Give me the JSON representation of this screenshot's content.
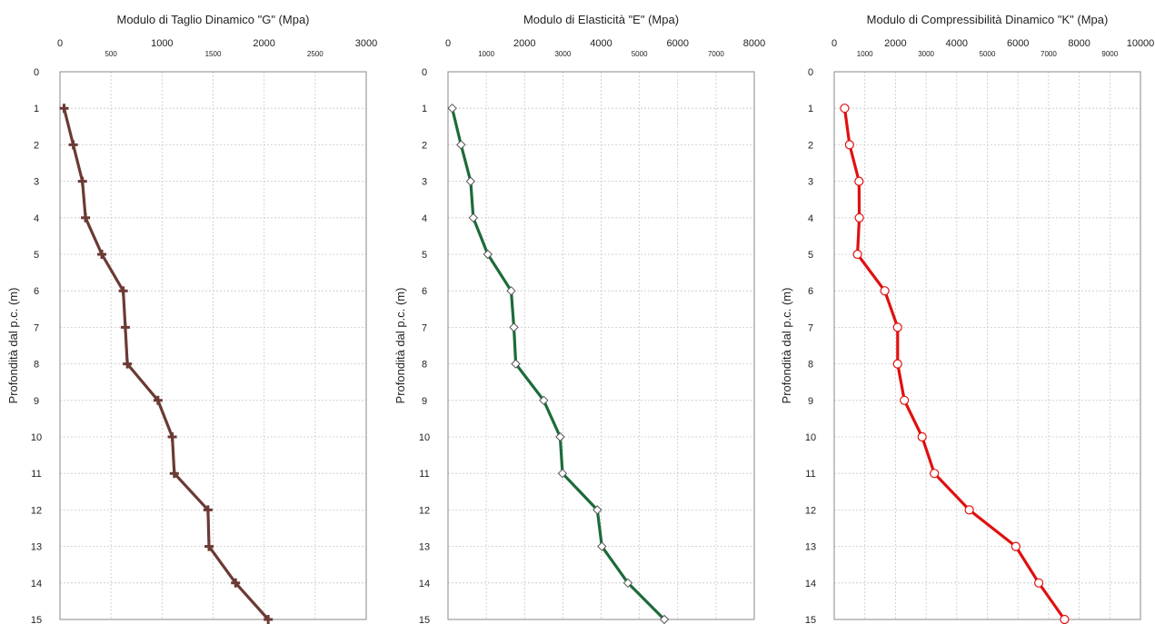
{
  "chart_data": [
    {
      "type": "line",
      "title": "Modulo di Taglio Dinamico \"G\" (Mpa)",
      "xlabel": "",
      "ylabel": "Profondità dal p.c.  (m)",
      "xlim": [
        0,
        3000
      ],
      "ylim": [
        0,
        15
      ],
      "y_inverted": true,
      "x_ticks_major": [
        0,
        1000,
        2000,
        3000
      ],
      "x_ticks_minor": [
        500,
        1500,
        2500
      ],
      "y_ticks": [
        0,
        1,
        2,
        3,
        4,
        5,
        6,
        7,
        8,
        9,
        10,
        11,
        12,
        13,
        14,
        15
      ],
      "grid": true,
      "marker": "plus",
      "color": "#6b3a35",
      "series": [
        {
          "x": [
            40,
            130,
            220,
            250,
            410,
            620,
            640,
            660,
            960,
            1100,
            1120,
            1450,
            1460,
            1720,
            2040
          ],
          "y": [
            1,
            2,
            3,
            4,
            5,
            6,
            7,
            8,
            9,
            10,
            11,
            12,
            13,
            14,
            15
          ]
        }
      ]
    },
    {
      "type": "line",
      "title": "Modulo di Elasticità \"E\" (Mpa)",
      "xlabel": "",
      "ylabel": "Profondità dal p.c.  (m)",
      "xlim": [
        0,
        8000
      ],
      "ylim": [
        0,
        15
      ],
      "y_inverted": true,
      "x_ticks_major": [
        0,
        2000,
        4000,
        6000,
        8000
      ],
      "x_ticks_minor": [
        1000,
        3000,
        5000,
        7000
      ],
      "y_ticks": [
        0,
        1,
        2,
        3,
        4,
        5,
        6,
        7,
        8,
        9,
        10,
        11,
        12,
        13,
        14,
        15
      ],
      "grid": true,
      "marker": "diamond",
      "color": "#1c6b3a",
      "series": [
        {
          "x": [
            110,
            340,
            590,
            660,
            1040,
            1650,
            1720,
            1770,
            2500,
            2930,
            2990,
            3900,
            4020,
            4700,
            5650
          ],
          "y": [
            1,
            2,
            3,
            4,
            5,
            6,
            7,
            8,
            9,
            10,
            11,
            12,
            13,
            14,
            15
          ]
        }
      ]
    },
    {
      "type": "line",
      "title": "Modulo di Compressibilità Dinamico \"K\" (Mpa)",
      "xlabel": "",
      "ylabel": "Profondità dal p.c.  (m)",
      "xlim": [
        0,
        10000
      ],
      "ylim": [
        0,
        15
      ],
      "y_inverted": true,
      "x_ticks_major": [
        0,
        2000,
        4000,
        6000,
        8000,
        10000
      ],
      "x_ticks_minor": [
        1000,
        3000,
        5000,
        7000,
        9000
      ],
      "y_ticks": [
        0,
        1,
        2,
        3,
        4,
        5,
        6,
        7,
        8,
        9,
        10,
        11,
        12,
        13,
        14,
        15
      ],
      "grid": true,
      "marker": "circle",
      "color": "#e01010",
      "series": [
        {
          "x": [
            340,
            500,
            810,
            820,
            760,
            1650,
            2070,
            2070,
            2290,
            2870,
            3270,
            4410,
            5930,
            6680,
            7520
          ],
          "y": [
            1,
            2,
            3,
            4,
            5,
            6,
            7,
            8,
            9,
            10,
            11,
            12,
            13,
            14,
            15
          ]
        }
      ]
    }
  ]
}
